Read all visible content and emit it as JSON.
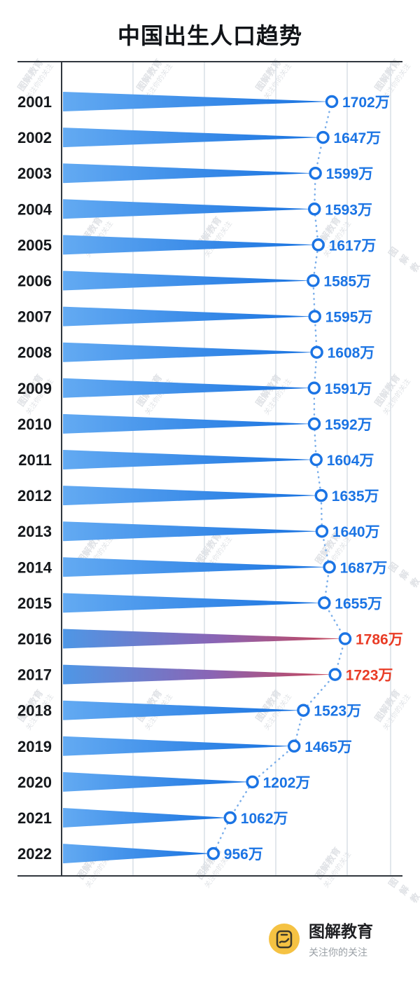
{
  "title": "中国出生人口趋势",
  "watermark": {
    "line1": "图解教育",
    "line2": "关注你的关注"
  },
  "footer": {
    "brand": "图解教育",
    "tagline": "关注你的关注",
    "logo_color": "#F5C243"
  },
  "chart_data": {
    "type": "bar",
    "orientation": "horizontal",
    "title": "中国出生人口趋势",
    "unit": "万",
    "categories": [
      "2001",
      "2002",
      "2003",
      "2004",
      "2005",
      "2006",
      "2007",
      "2008",
      "2009",
      "2010",
      "2011",
      "2012",
      "2013",
      "2014",
      "2015",
      "2016",
      "2017",
      "2018",
      "2019",
      "2020",
      "2021",
      "2022"
    ],
    "values": [
      1702,
      1647,
      1599,
      1593,
      1617,
      1585,
      1595,
      1608,
      1591,
      1592,
      1604,
      1635,
      1640,
      1687,
      1655,
      1786,
      1723,
      1523,
      1465,
      1202,
      1062,
      956
    ],
    "value_labels": [
      "1702万",
      "1647万",
      "1599万",
      "1593万",
      "1617万",
      "1585万",
      "1595万",
      "1608万",
      "1591万",
      "1592万",
      "1604万",
      "1635万",
      "1640万",
      "1687万",
      "1655万",
      "1786万",
      "1723万",
      "1523万",
      "1465万",
      "1202万",
      "1062万",
      "956万"
    ],
    "highlighted_categories": [
      "2016",
      "2017"
    ],
    "xlim": [
      0,
      2073
    ],
    "grid": true,
    "legend": false,
    "colors": {
      "bar_start": "#63aaf2",
      "bar_end": "#1872e0",
      "bar_highlight_start": "#4e97e6",
      "bar_highlight_mid": "#8a64b4",
      "bar_highlight_end": "#c84556",
      "value_label": "#1b74e4",
      "value_label_highlight": "#e93c26",
      "marker_fill": "#ffffff",
      "marker_stroke": "#1b74e4",
      "connector": "#7aaeea",
      "gridline": "#d9dfe6",
      "axis": "#31373e",
      "year_label": "#15181c",
      "watermark": "#c7ccd2"
    }
  }
}
